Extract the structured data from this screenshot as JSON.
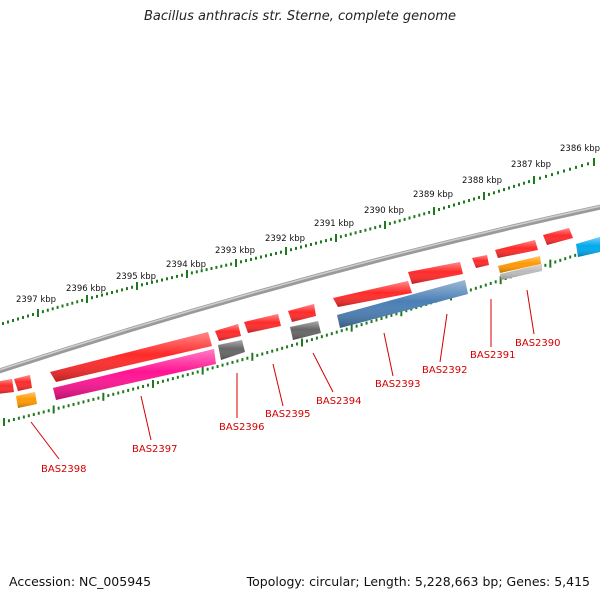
{
  "title": "Bacillus anthracis str. Sterne, complete genome",
  "footer": {
    "accession": "Accession: NC_005945",
    "summary": "Topology: circular; Length: 5,228,663 bp; Genes: 5,415"
  },
  "scale": {
    "unit_suffix": " kbp",
    "ticks_kbp": [
      2386,
      2387,
      2388,
      2389,
      2390,
      2391,
      2392,
      2393,
      2394,
      2395,
      2396,
      2397
    ]
  },
  "genes": [
    {
      "name": "BAS2390",
      "color": "#ff2a2a"
    },
    {
      "name": "BAS2391",
      "color": "#ff2a2a"
    },
    {
      "name": "BAS2392",
      "color": "#ff2a2a"
    },
    {
      "name": "BAS2393",
      "color": "#ff2a2a"
    },
    {
      "name": "BAS2394",
      "color": "#ff2a2a"
    },
    {
      "name": "BAS2395",
      "color": "#ff2a2a"
    },
    {
      "name": "BAS2396",
      "color": "#ff2a2a"
    },
    {
      "name": "BAS2397",
      "color": "#ff2a2a"
    },
    {
      "name": "BAS2398",
      "color": "#ff2a2a"
    }
  ],
  "features": [
    {
      "color": "#ff2a2a"
    },
    {
      "color": "#ff2a2a"
    },
    {
      "color": "#ff2a2a"
    },
    {
      "color": "#ff2a2a"
    },
    {
      "color": "#ff2a2a"
    },
    {
      "color": "#ff2a2a"
    },
    {
      "color": "#ff2a2a"
    },
    {
      "color": "#ff2a2a"
    },
    {
      "color": "#ff2a2a"
    },
    {
      "color": "#ff2a2a"
    },
    {
      "color": "#ff2a2a"
    },
    {
      "color": "#ff9900"
    },
    {
      "color": "#bbbbbb"
    },
    {
      "color": "#00aaee"
    },
    {
      "color": "#4a7fb5"
    },
    {
      "color": "#666666"
    },
    {
      "color": "#666666"
    },
    {
      "color": "#ff1493"
    },
    {
      "color": "#ff9900"
    }
  ],
  "colors": {
    "backbone": "#888888",
    "tick": "#1f7a1f",
    "label": "#d40000"
  }
}
